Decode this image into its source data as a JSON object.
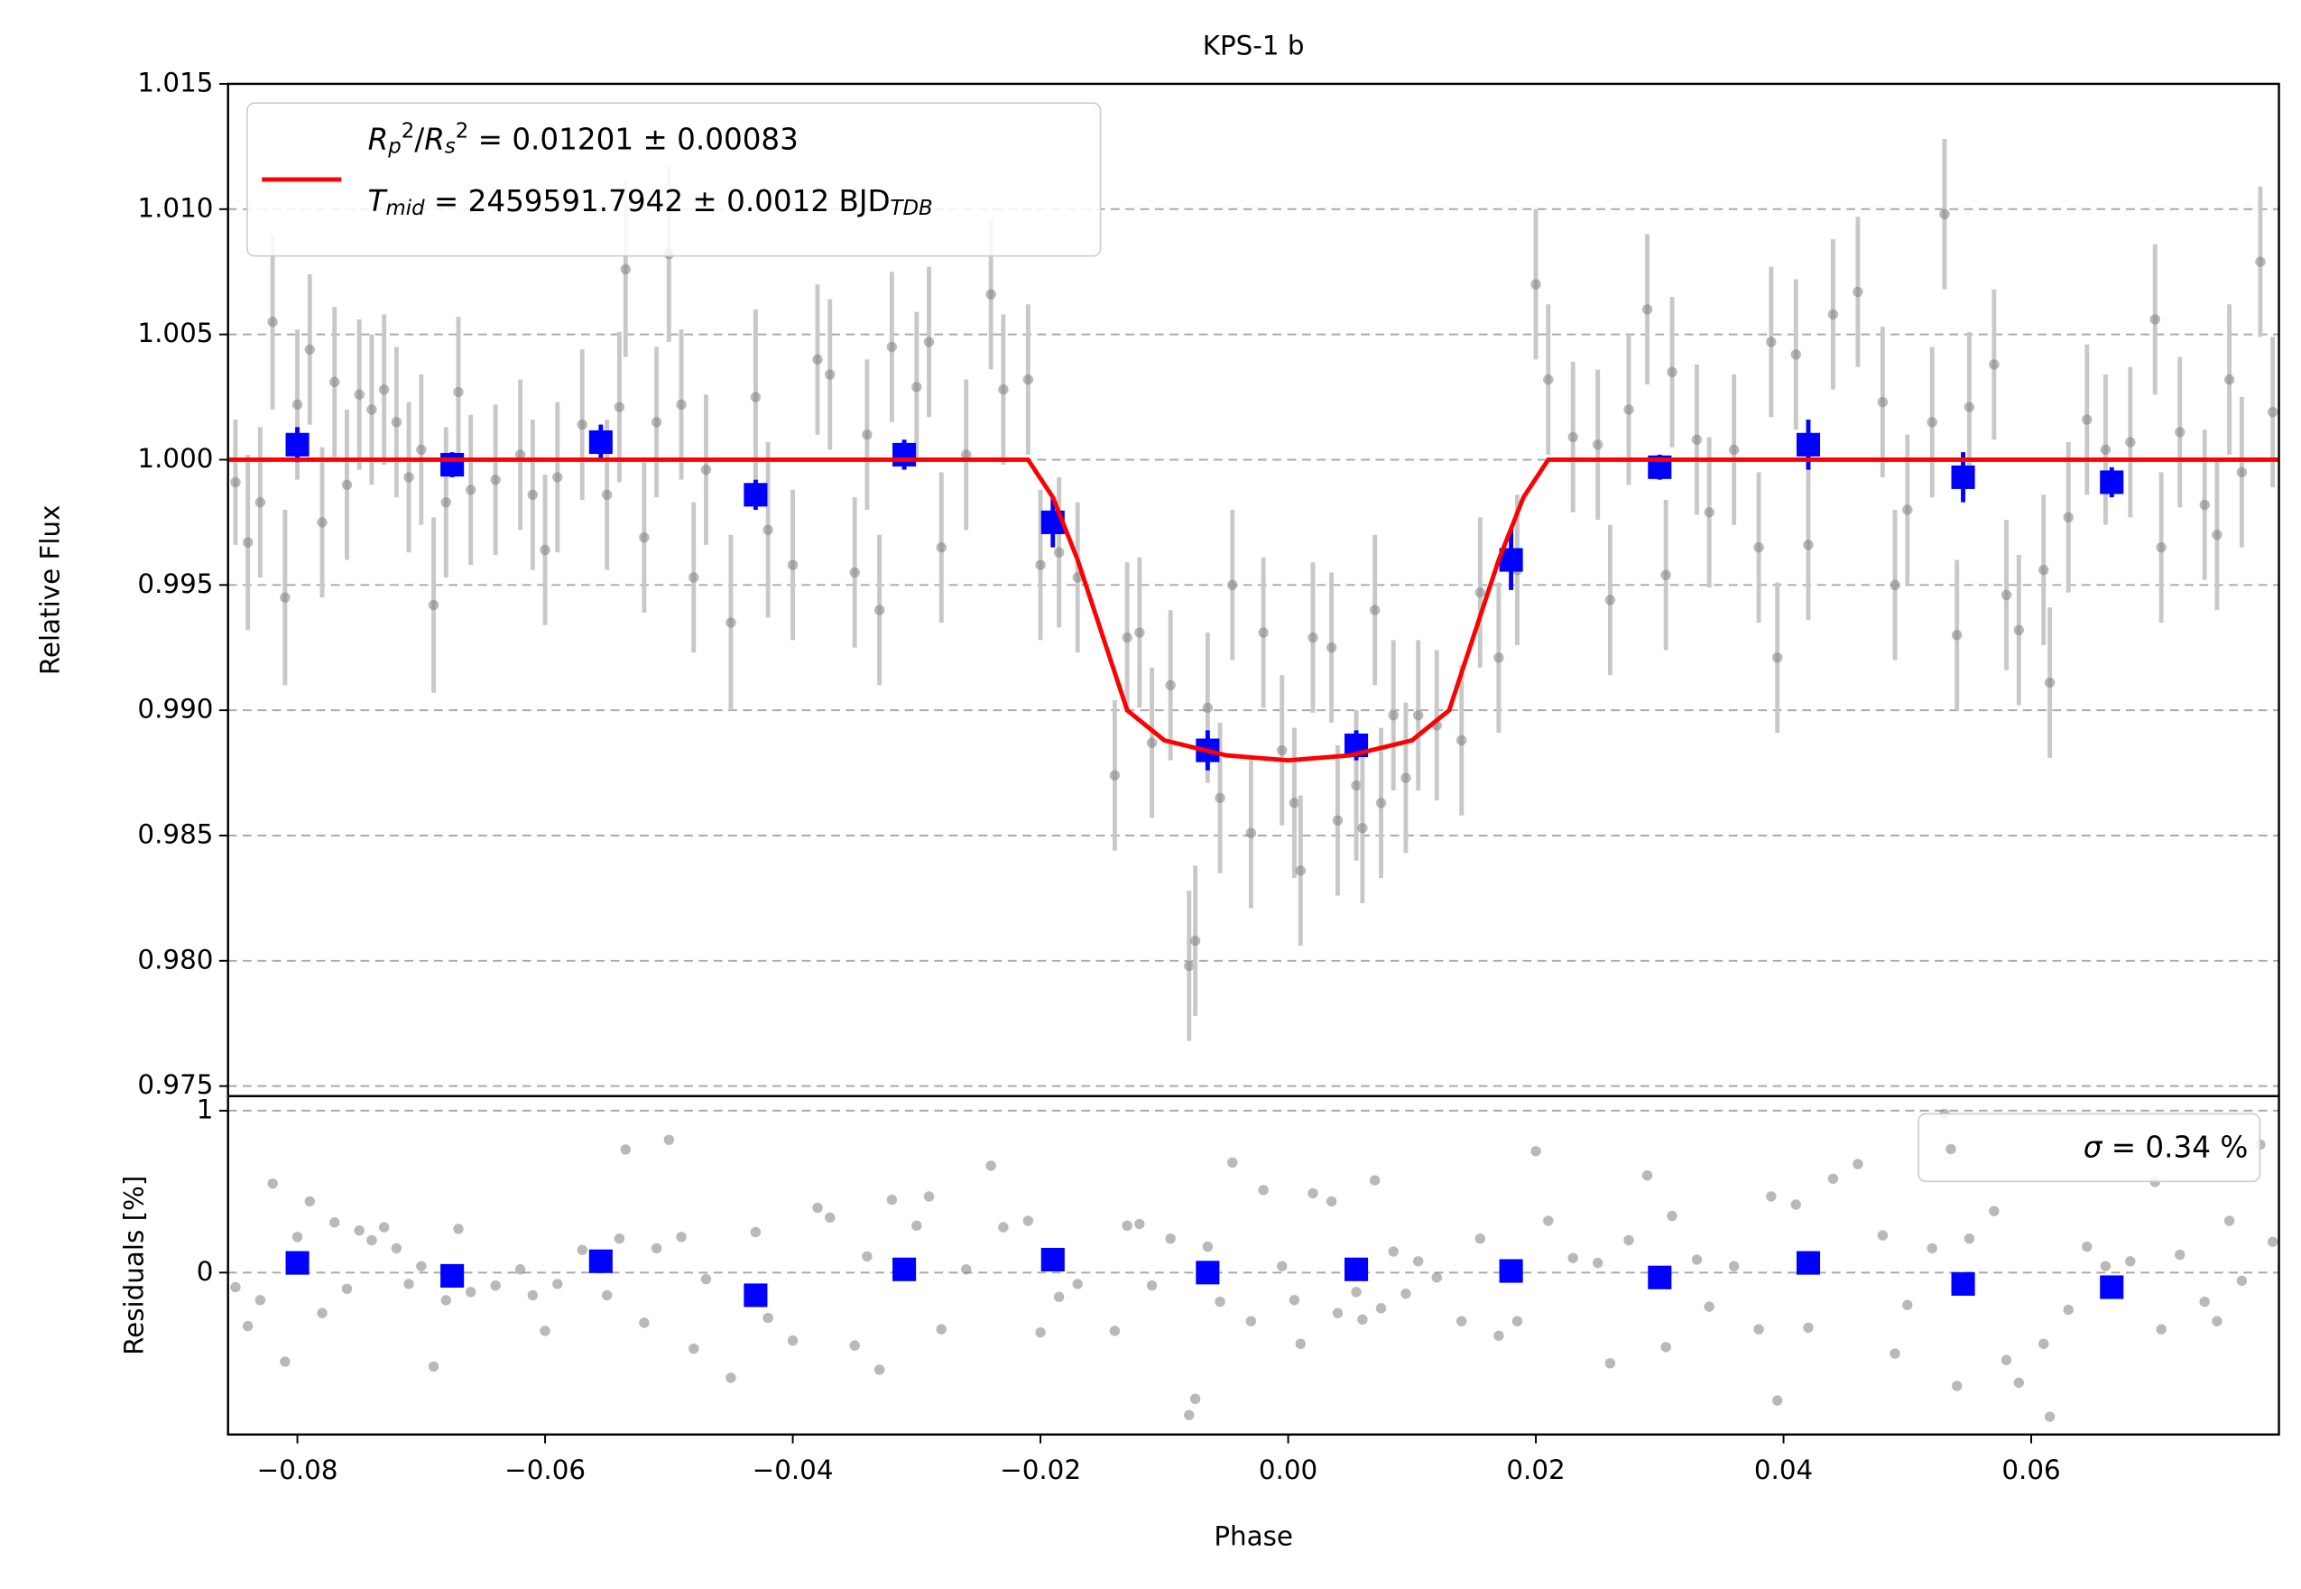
{
  "chart_data": [
    {
      "type": "scatter",
      "title": "KPS-1 b",
      "ylabel": "Relative Flux",
      "xlim": [
        -0.0856,
        0.08
      ],
      "ylim": [
        0.9746,
        1.015
      ],
      "yticks": [
        0.975,
        {
          "value": 0.98,
          "label": "0.980"
        },
        0.985,
        {
          "value": 0.99,
          "label": "0.990"
        },
        0.995,
        {
          "value": 1.0,
          "label": "1.000"
        },
        1.005,
        {
          "value": 1.01,
          "label": "1.010"
        },
        1.015
      ],
      "grid": "y",
      "legend": "upper left",
      "series": [
        {
          "color": "#808080",
          "error_color": "#c8c8c8",
          "marker": "circle",
          "x": [
            -0.085,
            -0.084,
            -0.083,
            -0.082,
            -0.081,
            -0.08,
            -0.079,
            -0.078,
            -0.077,
            -0.076,
            -0.075,
            -0.074,
            -0.073,
            -0.072,
            -0.071,
            -0.07,
            -0.069,
            -0.068,
            -0.067,
            -0.066,
            -0.064,
            -0.062,
            -0.061,
            -0.06,
            -0.059,
            -0.057,
            -0.055,
            -0.054,
            -0.0535,
            -0.052,
            -0.051,
            -0.05,
            -0.049,
            -0.048,
            -0.047,
            -0.045,
            -0.043,
            -0.042,
            -0.04,
            -0.038,
            -0.037,
            -0.035,
            -0.034,
            -0.033,
            -0.032,
            -0.03,
            -0.029,
            -0.028,
            -0.026,
            -0.024,
            -0.023,
            -0.021,
            -0.02,
            -0.0185,
            -0.017,
            -0.014,
            -0.013,
            -0.012,
            -0.011,
            -0.0095,
            -0.008,
            -0.0075,
            -0.0065,
            -0.0055,
            -0.0045,
            -0.003,
            -0.002,
            -0.0005,
            0.0005,
            0.001,
            0.002,
            0.0035,
            0.004,
            0.0055,
            0.006,
            0.007,
            0.0075,
            0.0085,
            0.0095,
            0.0105,
            0.012,
            0.014,
            0.0155,
            0.017,
            0.0185,
            0.02,
            0.021,
            0.023,
            0.025,
            0.026,
            0.0275,
            0.029,
            0.0305,
            0.031,
            0.033,
            0.034,
            0.036,
            0.038,
            0.039,
            0.0395,
            0.041,
            0.042,
            0.044,
            0.046,
            0.048,
            0.049,
            0.05,
            0.052,
            0.053,
            0.054,
            0.055,
            0.057,
            0.058,
            0.059,
            0.061,
            0.0615,
            0.063,
            0.0645,
            0.066,
            0.068,
            0.07,
            0.0705,
            0.072,
            0.074,
            0.075,
            0.076,
            0.077,
            0.0785,
            0.0795
          ],
          "values": [
            0.9991,
            0.9967,
            0.9983,
            1.0055,
            0.9945,
            1.0022,
            1.0044,
            0.9975,
            1.0031,
            0.999,
            1.0026,
            1.002,
            1.0028,
            1.0015,
            0.9993,
            1.0004,
            0.9942,
            0.9983,
            1.0027,
            0.9988,
            0.9992,
            1.0002,
            0.9986,
            0.9964,
            0.9993,
            1.0014,
            0.9986,
            1.0021,
            1.0076,
            0.9969,
            1.0015,
            1.0082,
            1.0022,
            0.9953,
            0.9996,
            0.9935,
            1.0025,
            0.9972,
            0.9958,
            1.004,
            1.0034,
            0.9955,
            1.001,
            0.994,
            1.0045,
            1.0029,
            1.0047,
            0.9965,
            1.0002,
            1.0066,
            1.0028,
            1.0032,
            0.9958,
            0.9963,
            0.9953,
            0.9874,
            0.9929,
            0.9931,
            0.9887,
            0.991,
            0.9798,
            0.9808,
            0.9901,
            0.9865,
            0.995,
            0.9851,
            0.9931,
            0.9884,
            0.9863,
            0.9836,
            0.9929,
            0.9925,
            0.9856,
            0.987,
            0.9853,
            0.994,
            0.9863,
            0.9898,
            0.9873,
            0.9898,
            0.9894,
            0.9888,
            0.9947,
            0.9921,
            0.9956,
            1.007,
            1.0032,
            1.0009,
            1.0006,
            0.9944,
            1.002,
            1.006,
            0.9954,
            1.0035,
            1.0008,
            0.9979,
            1.0004,
            0.9965,
            1.0047,
            0.9921,
            1.0042,
            0.9966,
            1.0058,
            1.0067,
            1.0023,
            0.995,
            0.998,
            1.0015,
            1.0098,
            0.993,
            1.0021,
            1.0038,
            0.9946,
            0.9932,
            0.9956,
            0.9911,
            0.9977,
            1.0016,
            1.0004,
            1.0007,
            1.0056,
            0.9965,
            1.0011,
            0.9982,
            0.997,
            1.0032,
            0.9995,
            1.0079,
            1.0019
          ],
          "errors": [
            0.0025,
            0.0035,
            0.003,
            0.0035,
            0.0035,
            0.003,
            0.003,
            0.003,
            0.003,
            0.003,
            0.003,
            0.003,
            0.003,
            0.003,
            0.003,
            0.003,
            0.0035,
            0.003,
            0.003,
            0.003,
            0.003,
            0.003,
            0.003,
            0.003,
            0.003,
            0.003,
            0.003,
            0.003,
            0.0035,
            0.003,
            0.003,
            0.0035,
            0.003,
            0.003,
            0.003,
            0.0035,
            0.0035,
            0.0035,
            0.003,
            0.003,
            0.003,
            0.003,
            0.003,
            0.003,
            0.003,
            0.003,
            0.003,
            0.003,
            0.003,
            0.003,
            0.003,
            0.003,
            0.003,
            0.003,
            0.003,
            0.003,
            0.003,
            0.003,
            0.003,
            0.003,
            0.003,
            0.003,
            0.003,
            0.003,
            0.003,
            0.003,
            0.003,
            0.003,
            0.003,
            0.003,
            0.003,
            0.003,
            0.003,
            0.003,
            0.003,
            0.003,
            0.003,
            0.003,
            0.003,
            0.003,
            0.003,
            0.003,
            0.003,
            0.003,
            0.003,
            0.003,
            0.003,
            0.003,
            0.003,
            0.003,
            0.003,
            0.003,
            0.003,
            0.003,
            0.003,
            0.003,
            0.003,
            0.003,
            0.003,
            0.003,
            0.003,
            0.003,
            0.003,
            0.003,
            0.003,
            0.003,
            0.003,
            0.003,
            0.003,
            0.003,
            0.003,
            0.003,
            0.003,
            0.003,
            0.003,
            0.003,
            0.003,
            0.003,
            0.003,
            0.003,
            0.003,
            0.003,
            0.003,
            0.003,
            0.003,
            0.003,
            0.003,
            0.003,
            0.003
          ]
        },
        {
          "color": "#0000ff",
          "error_color": "#0000ff",
          "marker": "square",
          "x": [
            -0.08,
            -0.0675,
            -0.0555,
            -0.043,
            -0.031,
            -0.019,
            -0.0065,
            0.0055,
            0.018,
            0.03,
            0.042,
            0.0545,
            0.0665
          ],
          "values": [
            1.0006,
            0.9998,
            1.0007,
            0.9986,
            1.0002,
            0.9975,
            0.9884,
            0.9886,
            0.996,
            0.9997,
            1.0006,
            0.9993,
            0.9991
          ],
          "errors": [
            0.0007,
            0.0005,
            0.0007,
            0.0006,
            0.0006,
            0.001,
            0.0008,
            0.0006,
            0.0012,
            0.0005,
            0.001,
            0.001,
            0.0006
          ]
        },
        {
          "type": "line",
          "color": "#ff0000",
          "name": [
            [
              {
                "text": "R",
                "style": "italic"
              },
              {
                "text": "p",
                "style": "sub"
              },
              {
                "text": "2",
                "style": "sup"
              },
              {
                "text": "/"
              },
              {
                "text": "R",
                "style": "italic"
              },
              {
                "text": "s",
                "style": "sub"
              },
              {
                "text": "2",
                "style": "sup"
              },
              {
                "text": " = 0.01201 ± 0.00083"
              }
            ],
            [
              {
                "text": "T",
                "style": "italic"
              },
              {
                "text": "mid",
                "style": "sub"
              },
              {
                "text": " = 2459591.7942 ± 0.0012 BJD"
              },
              {
                "text": "TDB",
                "style": "sub"
              }
            ]
          ],
          "x": [
            -0.0856,
            -0.021,
            -0.019,
            -0.017,
            -0.015,
            -0.013,
            -0.01,
            -0.005,
            0,
            0.005,
            0.01,
            0.013,
            0.015,
            0.017,
            0.019,
            0.021,
            0.08
          ],
          "values": [
            1.0,
            1.0,
            0.9985,
            0.996,
            0.993,
            0.99,
            0.9888,
            0.9882,
            0.988,
            0.9882,
            0.9888,
            0.99,
            0.993,
            0.996,
            0.9985,
            1.0,
            1.0
          ]
        }
      ]
    },
    {
      "type": "scatter",
      "ylabel": "Residuals [%]",
      "xlabel": "Phase",
      "xlim": [
        -0.0856,
        0.08
      ],
      "ylim": [
        -1.0,
        1.09
      ],
      "yticks": [
        0,
        1
      ],
      "xticks": [
        {
          "value": -0.08,
          "label": "−0.08"
        },
        {
          "value": -0.06,
          "label": "−0.06"
        },
        {
          "value": -0.04,
          "label": "−0.04"
        },
        {
          "value": -0.02,
          "label": "−0.02"
        },
        {
          "value": 0,
          "label": "0.00"
        },
        0.02,
        0.04,
        0.06
      ],
      "grid": "y",
      "legend": "upper right",
      "series": [
        {
          "color": "#808080",
          "marker": "circle",
          "name": [
            [
              {
                "text": "σ",
                "style": "italic"
              },
              {
                "text": " = 0.34 %"
              }
            ]
          ],
          "x": [
            -0.085,
            -0.084,
            -0.083,
            -0.082,
            -0.081,
            -0.08,
            -0.079,
            -0.078,
            -0.077,
            -0.076,
            -0.075,
            -0.074,
            -0.073,
            -0.072,
            -0.071,
            -0.07,
            -0.069,
            -0.068,
            -0.067,
            -0.066,
            -0.064,
            -0.062,
            -0.061,
            -0.06,
            -0.059,
            -0.057,
            -0.055,
            -0.054,
            -0.0535,
            -0.052,
            -0.051,
            -0.05,
            -0.049,
            -0.048,
            -0.047,
            -0.045,
            -0.043,
            -0.042,
            -0.04,
            -0.038,
            -0.037,
            -0.035,
            -0.034,
            -0.033,
            -0.032,
            -0.03,
            -0.029,
            -0.028,
            -0.026,
            -0.024,
            -0.023,
            -0.021,
            -0.02,
            -0.0185,
            -0.017,
            -0.014,
            -0.013,
            -0.012,
            -0.011,
            -0.0095,
            -0.008,
            -0.0075,
            -0.0065,
            -0.0055,
            -0.0045,
            -0.003,
            -0.002,
            -0.0005,
            0.0005,
            0.001,
            0.002,
            0.0035,
            0.004,
            0.0055,
            0.006,
            0.007,
            0.0075,
            0.0085,
            0.0095,
            0.0105,
            0.012,
            0.014,
            0.0155,
            0.017,
            0.0185,
            0.02,
            0.021,
            0.023,
            0.025,
            0.026,
            0.0275,
            0.029,
            0.0305,
            0.031,
            0.033,
            0.034,
            0.036,
            0.038,
            0.039,
            0.0395,
            0.041,
            0.042,
            0.044,
            0.046,
            0.048,
            0.049,
            0.05,
            0.052,
            0.053,
            0.054,
            0.055,
            0.057,
            0.058,
            0.059,
            0.061,
            0.0615,
            0.063,
            0.0645,
            0.066,
            0.068,
            0.07,
            0.0705,
            0.072,
            0.074,
            0.075,
            0.076,
            0.077,
            0.0785,
            0.0795
          ],
          "values": [
            -0.09,
            -0.33,
            -0.17,
            0.55,
            -0.55,
            0.22,
            0.44,
            -0.25,
            0.31,
            -0.1,
            0.26,
            0.2,
            0.28,
            0.15,
            -0.07,
            0.04,
            -0.58,
            -0.17,
            0.27,
            -0.12,
            -0.08,
            0.02,
            -0.14,
            -0.36,
            -0.07,
            0.14,
            -0.14,
            0.21,
            0.76,
            -0.31,
            0.15,
            0.82,
            0.22,
            -0.47,
            -0.04,
            -0.65,
            0.25,
            -0.28,
            -0.42,
            0.4,
            0.34,
            -0.45,
            0.1,
            -0.6,
            0.45,
            0.29,
            0.47,
            -0.35,
            0.02,
            0.66,
            0.28,
            0.32,
            -0.37,
            -0.15,
            -0.07,
            -0.36,
            0.29,
            0.3,
            -0.08,
            0.21,
            -0.88,
            -0.78,
            0.16,
            -0.18,
            0.68,
            -0.3,
            0.51,
            0.04,
            -0.17,
            -0.44,
            0.49,
            0.44,
            -0.25,
            -0.12,
            -0.29,
            0.57,
            -0.22,
            0.13,
            -0.13,
            0.07,
            -0.03,
            -0.3,
            0.21,
            -0.39,
            -0.3,
            0.75,
            0.32,
            0.09,
            0.06,
            -0.56,
            0.2,
            0.6,
            -0.46,
            0.35,
            0.08,
            -0.21,
            0.04,
            -0.35,
            0.47,
            -0.79,
            0.42,
            -0.34,
            0.58,
            0.67,
            0.23,
            -0.5,
            -0.2,
            0.15,
            0.98,
            -0.7,
            0.21,
            0.38,
            -0.54,
            -0.68,
            -0.44,
            -0.89,
            -0.23,
            0.16,
            0.04,
            0.07,
            0.56,
            -0.35,
            0.11,
            -0.18,
            -0.3,
            0.32,
            -0.05,
            0.79,
            0.19
          ]
        },
        {
          "color": "#0000ff",
          "marker": "square",
          "x": [
            -0.08,
            -0.0675,
            -0.0555,
            -0.043,
            -0.031,
            -0.019,
            -0.0065,
            0.0055,
            0.018,
            0.03,
            0.042,
            0.0545,
            0.0665
          ],
          "values": [
            0.06,
            -0.02,
            0.07,
            -0.14,
            0.02,
            0.08,
            0.0,
            0.02,
            0.01,
            -0.03,
            0.06,
            -0.07,
            -0.09
          ]
        }
      ]
    }
  ]
}
